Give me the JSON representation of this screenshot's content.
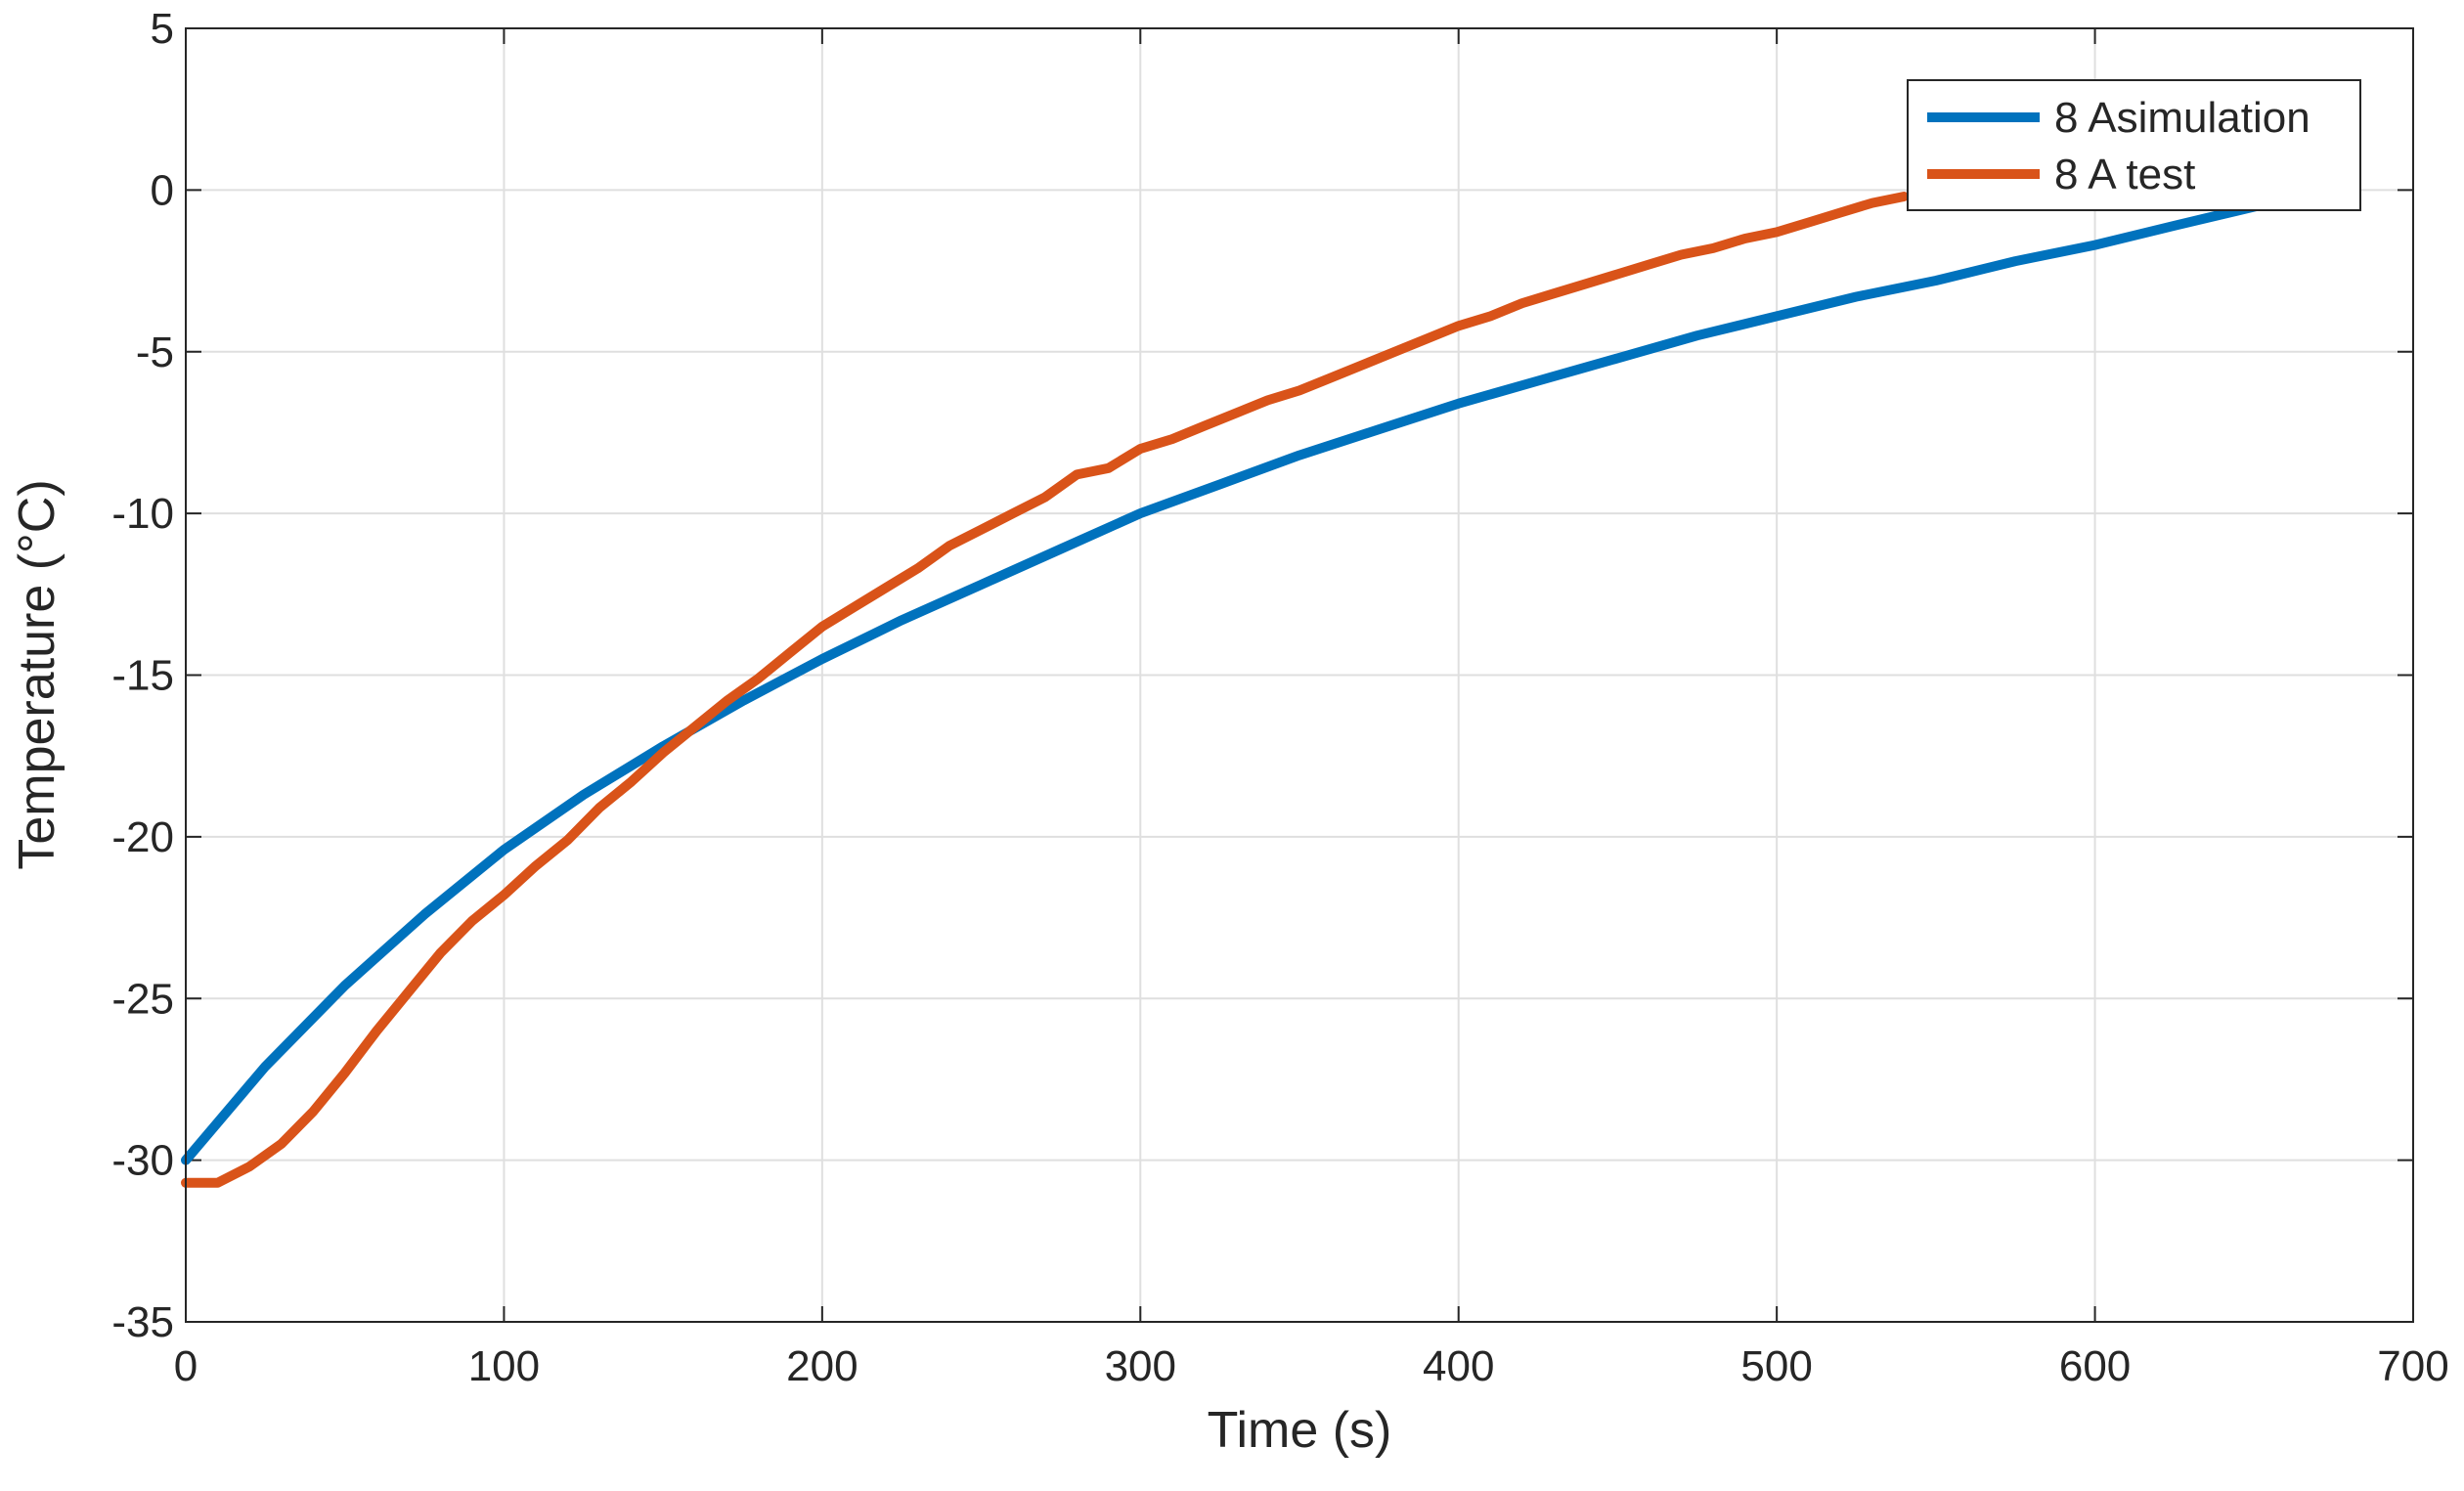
{
  "chart_data": {
    "type": "line",
    "xlabel": "Time (s)",
    "ylabel": "Temperature (°C)",
    "xlim": [
      0,
      700
    ],
    "ylim": [
      -35,
      5
    ],
    "xticks": [
      0,
      100,
      200,
      300,
      400,
      500,
      600,
      700
    ],
    "yticks": [
      -35,
      -30,
      -25,
      -20,
      -15,
      -10,
      -5,
      0,
      5
    ],
    "grid": true,
    "legend": "upper-right",
    "series": [
      {
        "name": "8 Asimulation",
        "color": "#0072BD",
        "x": [
          0,
          25,
          50,
          75,
          100,
          125,
          150,
          175,
          200,
          225,
          250,
          275,
          300,
          325,
          350,
          375,
          400,
          425,
          450,
          475,
          500,
          525,
          550,
          575,
          600,
          625,
          655
        ],
        "values": [
          -30,
          -27.1,
          -24.6,
          -22.4,
          -20.4,
          -18.7,
          -17.2,
          -15.8,
          -14.5,
          -13.3,
          -12.2,
          -11.1,
          -10.0,
          -9.1,
          -8.2,
          -7.4,
          -6.6,
          -5.9,
          -5.2,
          -4.5,
          -3.9,
          -3.3,
          -2.8,
          -2.2,
          -1.7,
          -1.1,
          -0.4
        ]
      },
      {
        "name": "8 A test",
        "color": "#D95319",
        "x": [
          0,
          10,
          20,
          30,
          40,
          50,
          60,
          70,
          80,
          90,
          100,
          110,
          120,
          130,
          140,
          150,
          160,
          170,
          180,
          190,
          200,
          210,
          220,
          230,
          240,
          250,
          260,
          270,
          280,
          290,
          300,
          310,
          320,
          330,
          340,
          350,
          360,
          370,
          380,
          390,
          400,
          410,
          420,
          430,
          440,
          450,
          460,
          470,
          480,
          490,
          500,
          510,
          520,
          530,
          540
        ],
        "values": [
          -30.7,
          -30.7,
          -30.2,
          -29.5,
          -28.5,
          -27.3,
          -26.0,
          -24.8,
          -23.6,
          -22.6,
          -21.8,
          -20.9,
          -20.1,
          -19.1,
          -18.3,
          -17.4,
          -16.6,
          -15.8,
          -15.1,
          -14.3,
          -13.5,
          -12.9,
          -12.3,
          -11.7,
          -11.0,
          -10.5,
          -10.0,
          -9.5,
          -8.8,
          -8.6,
          -8.0,
          -7.7,
          -7.3,
          -6.9,
          -6.5,
          -6.2,
          -5.8,
          -5.4,
          -5.0,
          -4.6,
          -4.2,
          -3.9,
          -3.5,
          -3.2,
          -2.9,
          -2.6,
          -2.3,
          -2.0,
          -1.8,
          -1.5,
          -1.3,
          -1.0,
          -0.7,
          -0.4,
          -0.2
        ]
      }
    ]
  }
}
